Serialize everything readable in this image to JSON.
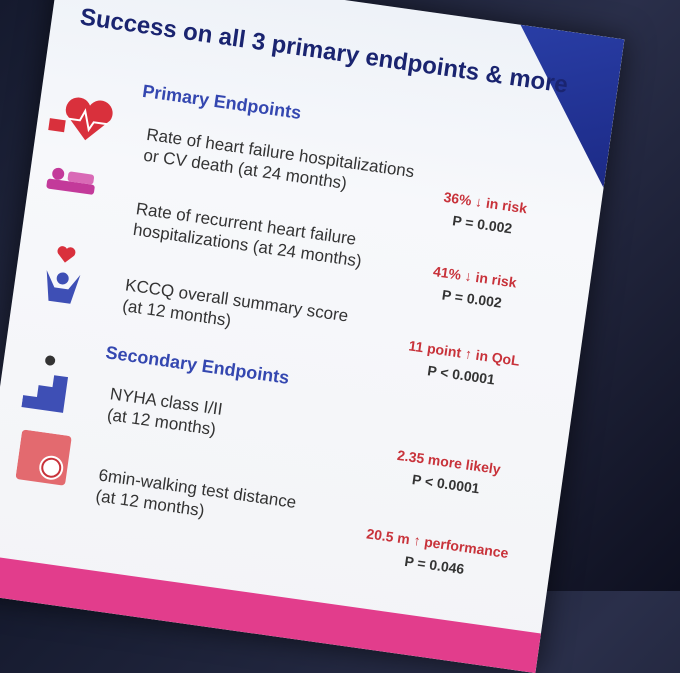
{
  "header": {
    "title": "Success on all 3 primary endpoints & more"
  },
  "sections": [
    {
      "title": "Primary Endpoints",
      "rows": [
        {
          "label": [
            "Rate of heart failure hospitalizations",
            "or CV death (at 24 months)"
          ],
          "result": [
            "36% ↓ in risk",
            "P = 0.002"
          ]
        },
        {
          "label": [
            "Rate of recurrent heart failure",
            "hospitalizations (at 24 months)"
          ],
          "result": [
            "41% ↓ in risk",
            "P = 0.002"
          ]
        },
        {
          "label": [
            "KCCQ overall summary score",
            "(at 12 months)"
          ],
          "result": [
            "11 point ↑ in QoL",
            "P < 0.0001"
          ]
        }
      ]
    },
    {
      "title": "Secondary Endpoints",
      "rows": [
        {
          "label": [
            "NYHA class I/II",
            "(at 12 months)"
          ],
          "result": [
            "2.35 more likely",
            "P < 0.0001"
          ]
        },
        {
          "label": [
            "6min-walking test distance",
            "(at 12 months)"
          ],
          "result": [
            "20.5 m ↑ performance",
            "P = 0.046"
          ]
        }
      ]
    }
  ]
}
